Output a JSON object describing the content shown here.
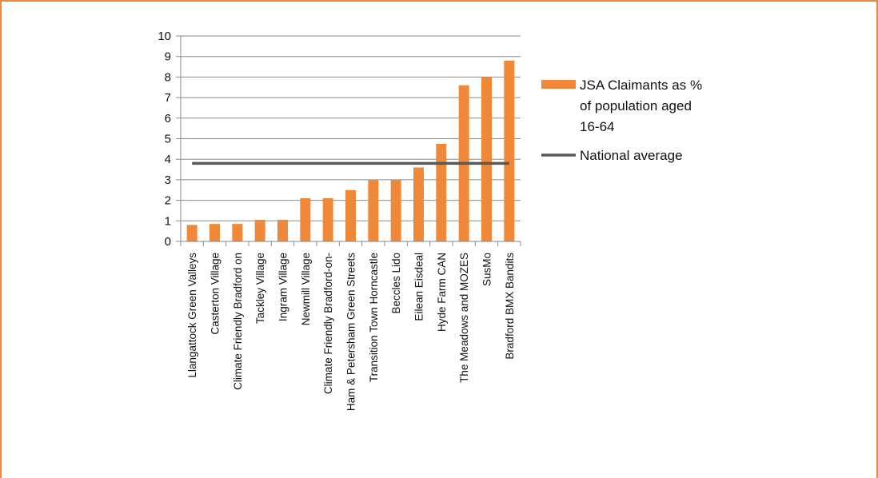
{
  "chart_data": {
    "type": "bar",
    "categories": [
      "Llangattock Green Valleys",
      "Casterton Village",
      "Climate Friendly Bradford on",
      "Tackley Village",
      "Ingram Village",
      "Newmill Village",
      "Climate Friendly Bradford-on-",
      "Ham & Petersham Green Streets",
      "Transition Town Horncastle",
      "Beccles Lido",
      "Eilean Eisdeal",
      "Hyde Farm CAN",
      "The Meadows and MOZES",
      "SusMo",
      "Bradford BMX Bandits"
    ],
    "series": [
      {
        "name": "JSA Claimants as % of population aged 16-64",
        "legend_lines": [
          "JSA Claimants as %",
          "of population aged",
          "16-64"
        ],
        "type": "bar",
        "color": "#f0883a",
        "values": [
          0.8,
          0.85,
          0.85,
          1.05,
          1.05,
          2.1,
          2.1,
          2.5,
          3.0,
          3.0,
          3.6,
          4.75,
          7.6,
          8.0,
          8.8
        ]
      },
      {
        "name": "National average",
        "legend_lines": [
          "National average"
        ],
        "type": "line",
        "color": "#555b56",
        "value": 3.8
      }
    ],
    "yticks": [
      "0",
      "1",
      "2",
      "3",
      "4",
      "5",
      "6",
      "7",
      "8",
      "9",
      "10"
    ],
    "ylim": [
      0,
      10
    ],
    "grid": true,
    "legend": "right"
  }
}
